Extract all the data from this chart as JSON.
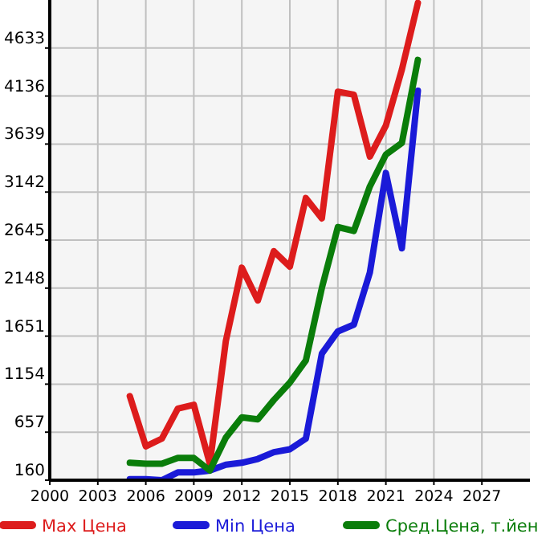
{
  "chart_data": {
    "type": "line",
    "x": [
      2005,
      2006,
      2007,
      2008,
      2009,
      2010,
      2011,
      2012,
      2013,
      2014,
      2015,
      2016,
      2017,
      2018,
      2019,
      2020,
      2021,
      2022,
      2023
    ],
    "series": [
      {
        "name": "Max Цена",
        "color": "#dd1c1c",
        "values": [
          1030,
          510,
          590,
          900,
          940,
          330,
          1600,
          2360,
          2020,
          2530,
          2370,
          3080,
          2870,
          4180,
          4150,
          3510,
          3830,
          4410,
          5100
        ]
      },
      {
        "name": "Min Цена",
        "color": "#1a1ad8",
        "values": [
          170,
          170,
          160,
          240,
          240,
          260,
          320,
          340,
          380,
          450,
          480,
          590,
          1470,
          1700,
          1770,
          2310,
          3340,
          2560,
          4190
        ]
      },
      {
        "name": "Сред.Цена, т.йен",
        "color": "#0a7d0a",
        "values": [
          340,
          330,
          330,
          390,
          390,
          260,
          600,
          810,
          790,
          990,
          1170,
          1400,
          2150,
          2780,
          2740,
          3200,
          3530,
          3650,
          4510
        ]
      }
    ],
    "xlim": [
      2000,
      2030
    ],
    "xticks": [
      2000,
      2003,
      2006,
      2009,
      2012,
      2015,
      2018,
      2021,
      2024,
      2027
    ],
    "ylim": [
      160,
      5130
    ],
    "yticks": [
      160,
      657,
      1154,
      1651,
      2148,
      2645,
      3142,
      3639,
      4136,
      4633
    ],
    "grid": true,
    "legend": "bottom",
    "line_style": "solid"
  }
}
